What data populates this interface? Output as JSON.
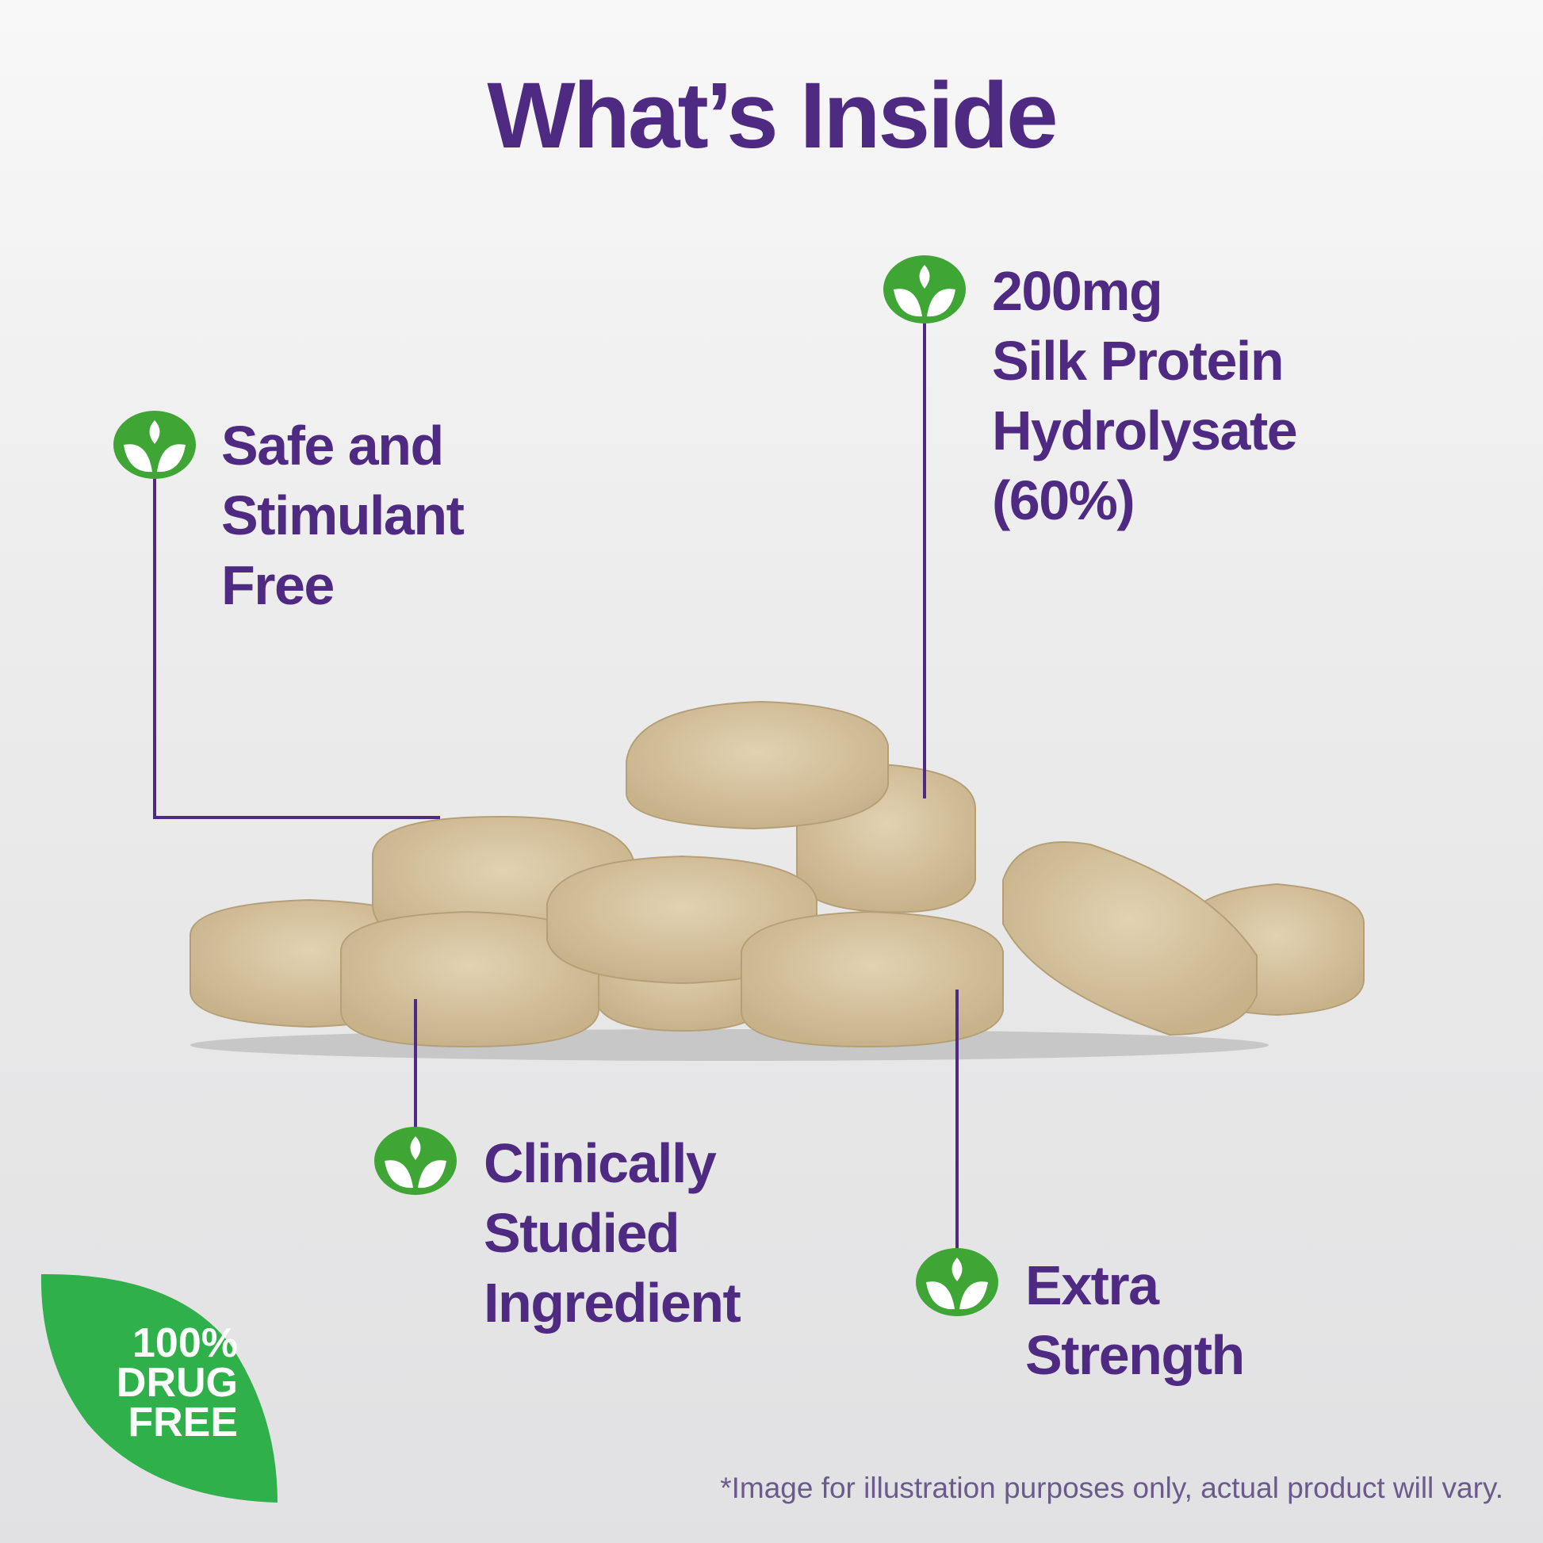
{
  "colors": {
    "purple": "#4f2a82",
    "green": "#3fa535",
    "badge_green": "#2fb04a",
    "pill": "#d9c6a2"
  },
  "title": "What’s Inside",
  "features": [
    {
      "lines": [
        "Safe and",
        "Stimulant",
        "Free"
      ],
      "icon": "leaf-sprout-icon"
    },
    {
      "lines": [
        "200mg",
        "Silk Protein",
        "Hydrolysate",
        "(60%)"
      ],
      "icon": "leaf-sprout-icon"
    },
    {
      "lines": [
        "Clinically",
        "Studied",
        "Ingredient"
      ],
      "icon": "leaf-sprout-icon"
    },
    {
      "lines": [
        "Extra",
        "Strength"
      ],
      "icon": "leaf-sprout-icon"
    }
  ],
  "badge": {
    "lines": [
      "100%",
      "DRUG",
      "FREE"
    ]
  },
  "disclaimer": "*Image for illustration purposes only, actual product will vary."
}
